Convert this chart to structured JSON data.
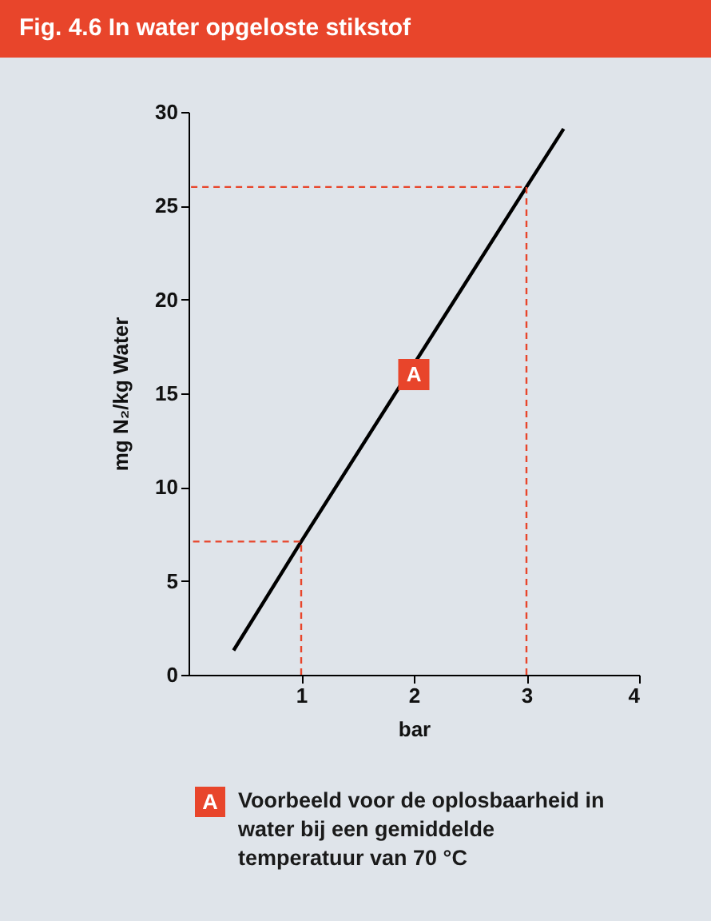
{
  "chart_data": {
    "type": "line",
    "title": "Fig. 4.6  In water opgeloste stikstof",
    "xlabel": "bar",
    "ylabel": "mg N₂/kg Water",
    "xlim": [
      0,
      4
    ],
    "xticks": [
      1,
      2,
      3,
      4
    ],
    "ylim": [
      0,
      30
    ],
    "yticks": [
      0,
      5,
      10,
      15,
      20,
      25,
      30
    ],
    "grid": false,
    "series": [
      {
        "color": "#000000",
        "x": [
          0.4,
          1,
          3,
          3.33
        ],
        "values": [
          1.3,
          7.1,
          26,
          29.1
        ]
      },
      {
        "color": "#e8452b",
        "line_style": "dashed",
        "x": [
          1,
          1,
          0
        ],
        "values": [
          0,
          7.1,
          7.1
        ]
      },
      {
        "color": "#e8452b",
        "line_style": "dashed",
        "x": [
          3,
          3,
          0
        ],
        "values": [
          0,
          26,
          26
        ]
      }
    ],
    "annotations": [
      {
        "text": "A",
        "x": 2,
        "y": 16
      },
      "Voorbeeld voor de oplosbaarheid in water bij een gemiddelde temperatuur van 70 °C"
    ]
  }
}
